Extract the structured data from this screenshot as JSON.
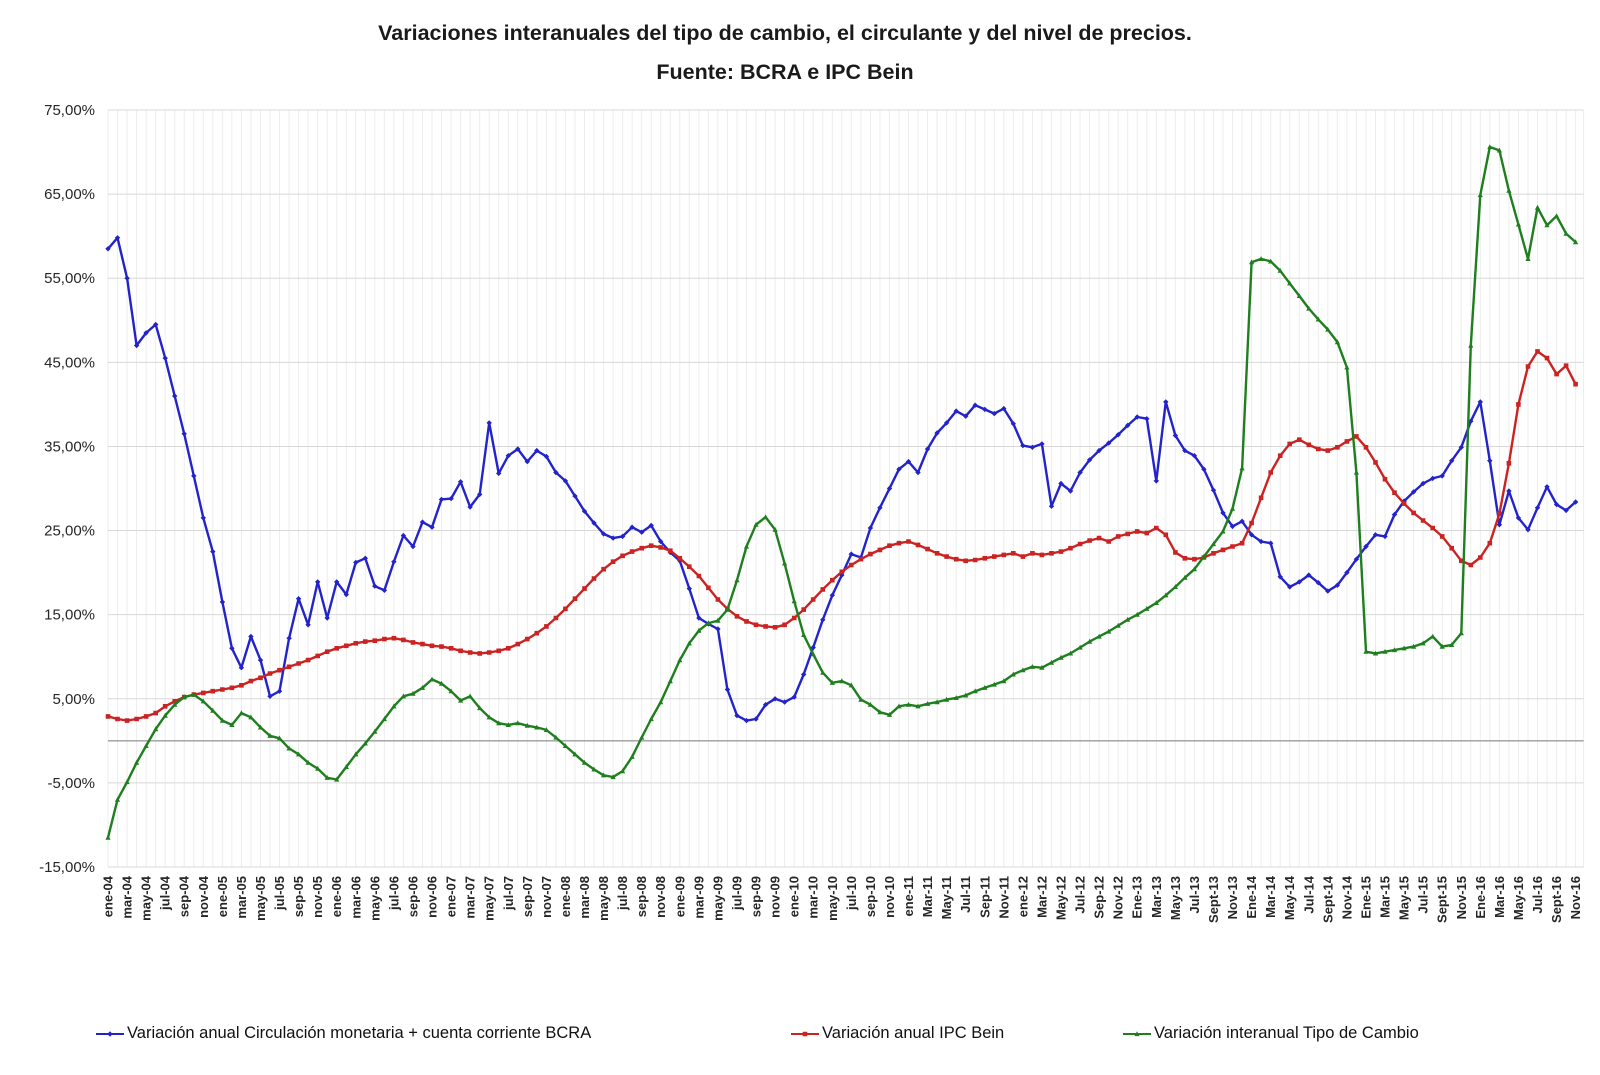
{
  "title": {
    "line1": "Variaciones interanuales del tipo de cambio, el circulante y del nivel de precios.",
    "line2": "Fuente: BCRA e IPC Bein"
  },
  "chart_data": {
    "type": "line",
    "title": "Variaciones interanuales del tipo de cambio, el circulante y del nivel de precios. Fuente: BCRA e IPC Bein",
    "grid": true,
    "legend_position": "bottom",
    "x_axis": {
      "n_points": 155,
      "tick_step": 2,
      "tick_labels": [
        "ene-04",
        "mar-04",
        "may-04",
        "jul-04",
        "sep-04",
        "nov-04",
        "ene-05",
        "mar-05",
        "may-05",
        "jul-05",
        "sep-05",
        "nov-05",
        "ene-06",
        "mar-06",
        "may-06",
        "jul-06",
        "sep-06",
        "nov-06",
        "ene-07",
        "mar-07",
        "may-07",
        "jul-07",
        "sep-07",
        "nov-07",
        "ene-08",
        "mar-08",
        "may-08",
        "jul-08",
        "sep-08",
        "nov-08",
        "ene-09",
        "mar-09",
        "may-09",
        "jul-09",
        "sep-09",
        "nov-09",
        "ene-10",
        "mar-10",
        "may-10",
        "jul-10",
        "sep-10",
        "nov-10",
        "ene-11",
        "Mar-11",
        "May-11",
        "Jul-11",
        "Sep-11",
        "Nov-11",
        "ene-12",
        "Mar-12",
        "May-12",
        "Jul-12",
        "Sep-12",
        "Nov-12",
        "Ene-13",
        "Mar-13",
        "May-13",
        "Jul-13",
        "Sept-13",
        "Nov-13",
        "Ene-14",
        "Mar-14",
        "May-14",
        "Jul-14",
        "Sept-14",
        "Nov-14",
        "Ene-15",
        "Mar-15",
        "May-15",
        "Jul-15",
        "Sept-15",
        "Nov-15",
        "Ene-16",
        "Mar-16",
        "May-16",
        "Jul-16",
        "Sept-16",
        "Nov-16"
      ]
    },
    "y_axis": {
      "min": -15,
      "max": 75,
      "zero_line": true,
      "ticks": [
        {
          "value": 75,
          "label": "75,00%"
        },
        {
          "value": 65,
          "label": "65,00%"
        },
        {
          "value": 55,
          "label": "55,00%"
        },
        {
          "value": 45,
          "label": "45,00%"
        },
        {
          "value": 35,
          "label": "35,00%"
        },
        {
          "value": 25,
          "label": "25,00%"
        },
        {
          "value": 15,
          "label": "15,00%"
        },
        {
          "value": 5,
          "label": "5,00%"
        },
        {
          "value": -5,
          "label": "-5,00%"
        },
        {
          "value": -15,
          "label": "-15,00%"
        }
      ]
    },
    "series": [
      {
        "name": "Variación anual Circulación monetaria + cuenta corriente BCRA",
        "color": "#2323CB",
        "marker": "diamond",
        "values": [
          58.5,
          59.8,
          55.0,
          47.0,
          48.5,
          49.5,
          45.5,
          41.0,
          36.5,
          31.5,
          26.5,
          22.5,
          16.5,
          11.0,
          8.7,
          12.4,
          9.6,
          5.3,
          5.9,
          12.2,
          16.9,
          13.8,
          18.9,
          14.6,
          18.9,
          17.4,
          21.2,
          21.7,
          18.4,
          17.9,
          21.3,
          24.4,
          23.1,
          26.0,
          25.4,
          28.7,
          28.8,
          30.8,
          27.8,
          29.3,
          37.8,
          31.8,
          33.9,
          34.7,
          33.2,
          34.5,
          33.8,
          31.9,
          30.9,
          29.1,
          27.3,
          25.9,
          24.6,
          24.1,
          24.3,
          25.4,
          24.8,
          25.6,
          23.7,
          22.4,
          21.4,
          18.1,
          14.6,
          13.9,
          13.3,
          6.1,
          3.0,
          2.4,
          2.6,
          4.3,
          5.0,
          4.6,
          5.2,
          7.9,
          11.1,
          14.4,
          17.3,
          19.7,
          22.2,
          21.8,
          25.3,
          27.7,
          30.0,
          32.3,
          33.2,
          31.9,
          34.7,
          36.6,
          37.8,
          39.2,
          38.6,
          39.9,
          39.4,
          38.9,
          39.5,
          37.7,
          35.1,
          34.9,
          35.3,
          27.9,
          30.6,
          29.7,
          31.9,
          33.4,
          34.5,
          35.4,
          36.4,
          37.5,
          38.5,
          38.3,
          30.9,
          40.3,
          36.3,
          34.5,
          33.9,
          32.3,
          29.8,
          27.1,
          25.5,
          26.1,
          24.5,
          23.7,
          23.5,
          19.5,
          18.3,
          18.9,
          19.7,
          18.8,
          17.8,
          18.5,
          20.0,
          21.6,
          23.1,
          24.5,
          24.3,
          26.9,
          28.5,
          29.6,
          30.6,
          31.2,
          31.5,
          33.3,
          34.9,
          38.0,
          40.3,
          33.3,
          25.7,
          29.7,
          26.5,
          25.1,
          27.7,
          30.2,
          28.1,
          27.4,
          28.4
        ]
      },
      {
        "name": "Variación anual IPC Bein",
        "color": "#CB2222",
        "marker": "square",
        "values": [
          2.9,
          2.6,
          2.4,
          2.6,
          2.9,
          3.3,
          4.1,
          4.7,
          5.2,
          5.5,
          5.7,
          5.9,
          6.1,
          6.3,
          6.6,
          7.1,
          7.5,
          8.0,
          8.4,
          8.8,
          9.2,
          9.6,
          10.1,
          10.6,
          11.0,
          11.3,
          11.6,
          11.8,
          11.9,
          12.1,
          12.2,
          12.0,
          11.7,
          11.5,
          11.3,
          11.2,
          11.0,
          10.7,
          10.5,
          10.4,
          10.5,
          10.7,
          11.0,
          11.5,
          12.1,
          12.8,
          13.6,
          14.6,
          15.7,
          16.9,
          18.1,
          19.3,
          20.4,
          21.3,
          22.0,
          22.5,
          22.9,
          23.2,
          23.0,
          22.6,
          21.7,
          20.7,
          19.6,
          18.2,
          16.8,
          15.7,
          14.8,
          14.2,
          13.8,
          13.6,
          13.5,
          13.8,
          14.6,
          15.6,
          16.8,
          18.0,
          19.1,
          20.1,
          20.9,
          21.6,
          22.2,
          22.7,
          23.2,
          23.5,
          23.7,
          23.3,
          22.8,
          22.3,
          21.9,
          21.6,
          21.4,
          21.5,
          21.7,
          21.9,
          22.1,
          22.3,
          21.9,
          22.3,
          22.1,
          22.3,
          22.5,
          22.9,
          23.4,
          23.8,
          24.1,
          23.7,
          24.3,
          24.6,
          24.9,
          24.7,
          25.3,
          24.5,
          22.4,
          21.7,
          21.6,
          21.8,
          22.3,
          22.7,
          23.1,
          23.5,
          25.9,
          28.9,
          31.9,
          33.9,
          35.3,
          35.8,
          35.2,
          34.7,
          34.5,
          34.9,
          35.6,
          36.2,
          34.9,
          33.1,
          31.1,
          29.5,
          28.2,
          27.1,
          26.2,
          25.3,
          24.3,
          22.9,
          21.4,
          20.9,
          21.8,
          23.5,
          27.0,
          33.0,
          40.0,
          44.5,
          46.3,
          45.5,
          43.6,
          44.6,
          42.4
        ]
      },
      {
        "name": "Variación interanual Tipo de Cambio",
        "color": "#1F7F1F",
        "marker": "triangle",
        "values": [
          -11.5,
          -7.0,
          -4.9,
          -2.6,
          -0.6,
          1.4,
          3.0,
          4.3,
          5.2,
          5.5,
          4.7,
          3.6,
          2.4,
          1.9,
          3.3,
          2.8,
          1.6,
          0.6,
          0.3,
          -0.9,
          -1.6,
          -2.6,
          -3.3,
          -4.4,
          -4.6,
          -3.1,
          -1.6,
          -0.3,
          1.1,
          2.6,
          4.1,
          5.3,
          5.6,
          6.3,
          7.3,
          6.8,
          5.9,
          4.8,
          5.3,
          3.9,
          2.8,
          2.1,
          1.9,
          2.1,
          1.8,
          1.6,
          1.3,
          0.4,
          -0.6,
          -1.6,
          -2.6,
          -3.4,
          -4.1,
          -4.3,
          -3.6,
          -1.9,
          0.4,
          2.6,
          4.6,
          7.1,
          9.6,
          11.6,
          13.1,
          14.0,
          14.3,
          15.6,
          19.1,
          23.1,
          25.7,
          26.6,
          25.1,
          21.1,
          16.6,
          12.6,
          10.3,
          8.1,
          6.9,
          7.1,
          6.6,
          4.9,
          4.3,
          3.4,
          3.1,
          4.1,
          4.3,
          4.1,
          4.4,
          4.6,
          4.9,
          5.1,
          5.4,
          5.9,
          6.3,
          6.7,
          7.1,
          7.9,
          8.4,
          8.8,
          8.7,
          9.3,
          9.9,
          10.4,
          11.1,
          11.8,
          12.4,
          13.0,
          13.7,
          14.4,
          15.0,
          15.7,
          16.4,
          17.3,
          18.3,
          19.4,
          20.4,
          21.9,
          23.4,
          24.9,
          27.6,
          32.4,
          56.9,
          57.3,
          57.0,
          55.9,
          54.4,
          52.9,
          51.4,
          50.1,
          48.9,
          47.4,
          44.4,
          31.9,
          10.6,
          10.4,
          10.6,
          10.8,
          11.0,
          11.2,
          11.6,
          12.4,
          11.2,
          11.4,
          12.8,
          47.0,
          64.9,
          70.6,
          70.2,
          65.4,
          61.4,
          57.3,
          63.4,
          61.3,
          62.4,
          60.3,
          59.3
        ]
      }
    ]
  }
}
